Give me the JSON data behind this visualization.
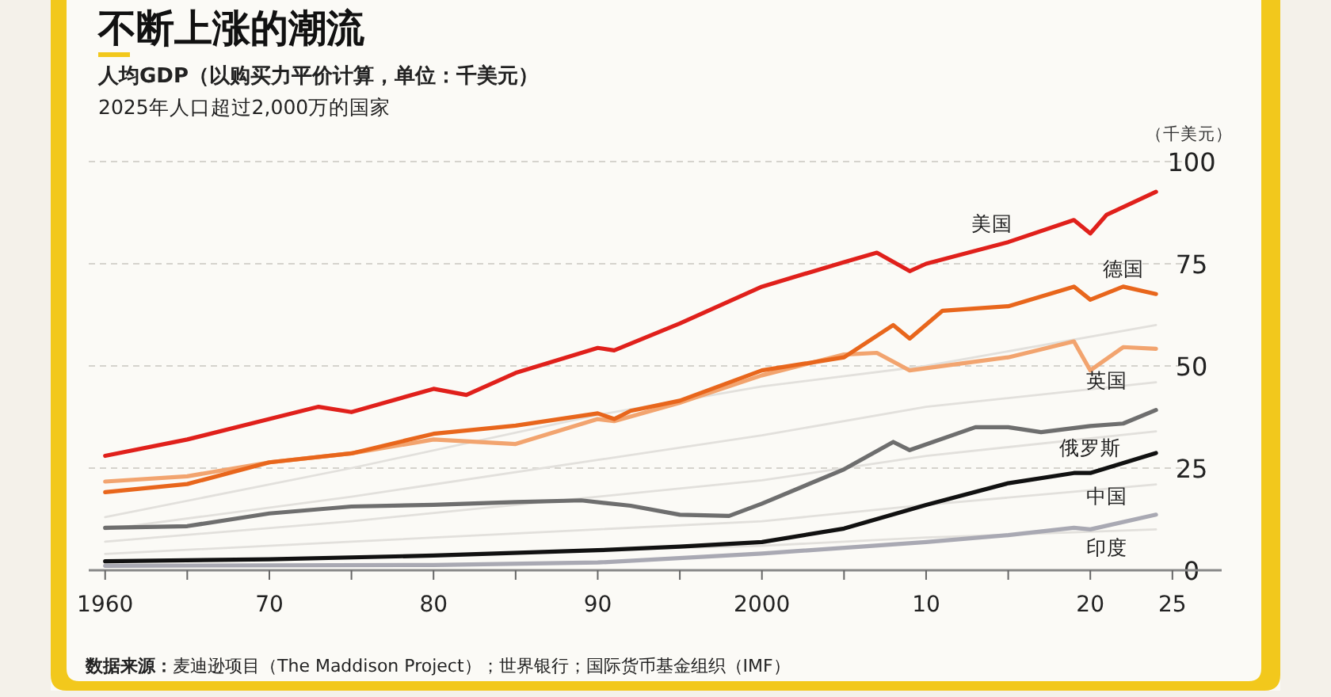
{
  "chart_data": {
    "type": "line",
    "title": "不断上涨的潮流",
    "subtitle": "人均GDP（以购买力平价计算，单位：千美元）",
    "ylabel": "（千美元）",
    "annotations": [
      "2025年人口超过2,000万的国家",
      "**数据来源：**麦迪逊项目（The Maddison Project）；世界银行；国际货币基金组织（IMF）"
    ],
    "xlim": [
      1959,
      2028
    ],
    "ylim": [
      0,
      100
    ],
    "xticks": [
      {
        "value": 1960,
        "label": "1960"
      },
      {
        "value": 1965,
        "label": null
      },
      {
        "value": 1970,
        "label": "70"
      },
      {
        "value": 1975,
        "label": null
      },
      {
        "value": 1980,
        "label": "80"
      },
      {
        "value": 1985,
        "label": null
      },
      {
        "value": 1990,
        "label": "90"
      },
      {
        "value": 1995,
        "label": null
      },
      {
        "value": 2000,
        "label": "2000"
      },
      {
        "value": 2005,
        "label": null
      },
      {
        "value": 2010,
        "label": "10"
      },
      {
        "value": 2015,
        "label": null
      },
      {
        "value": 2020,
        "label": "20"
      },
      {
        "value": 2025,
        "label": "25"
      }
    ],
    "yticks": [
      0,
      25,
      50,
      75,
      100
    ],
    "grid": "y",
    "legend": false,
    "marker": "none",
    "line_style": "solid",
    "series": [
      {
        "color": "#e2e0dc",
        "x": [
          1960,
          1975,
          1990,
          2000,
          2010,
          2024
        ],
        "values": [
          13,
          25,
          38,
          45,
          50,
          60
        ]
      },
      {
        "color": "#e2e0dc",
        "x": [
          1960,
          1975,
          1990,
          2000,
          2010,
          2024
        ],
        "values": [
          10,
          18,
          27,
          33,
          40,
          46
        ]
      },
      {
        "color": "#e2e0dc",
        "x": [
          1960,
          1975,
          1990,
          2000,
          2010,
          2024
        ],
        "values": [
          7,
          12,
          18,
          22,
          28,
          34
        ]
      },
      {
        "color": "#e2e0dc",
        "x": [
          1960,
          1975,
          1990,
          2000,
          2010,
          2024
        ],
        "values": [
          4,
          7,
          10,
          12,
          16,
          21
        ]
      },
      {
        "color": "#e2e0dc",
        "x": [
          1975,
          1990,
          2000,
          2010,
          2024
        ],
        "values": [
          3,
          5,
          6,
          8,
          10
        ]
      },
      {
        "name": "印度",
        "color": "#a9a9b3",
        "x": [
          1960,
          1980,
          1990,
          2000,
          2010,
          2015,
          2019,
          2020,
          2024
        ],
        "values": [
          1.1,
          1.3,
          1.9,
          4.1,
          6.9,
          8.6,
          10.4,
          10,
          13.6
        ]
      },
      {
        "name": "中国",
        "color": "#111111",
        "x": [
          1960,
          1970,
          1980,
          1990,
          1995,
          2000,
          2005,
          2010,
          2015,
          2019,
          2020,
          2024
        ],
        "values": [
          2.2,
          2.7,
          3.6,
          4.9,
          5.8,
          6.9,
          10.2,
          16,
          21.3,
          23.8,
          23.8,
          28.7
        ]
      },
      {
        "name": "俄罗斯",
        "color": "#6e6e6e",
        "x": [
          1960,
          1965,
          1970,
          1975,
          1980,
          1985,
          1989,
          1992,
          1995,
          1998,
          2000,
          2005,
          2008,
          2009,
          2013,
          2015,
          2017,
          2020,
          2022,
          2024
        ],
        "values": [
          10.4,
          10.8,
          13.9,
          15.6,
          16,
          16.7,
          17.1,
          15.8,
          13.6,
          13.3,
          16.3,
          24.7,
          31.4,
          29.4,
          35,
          35,
          33.8,
          35.3,
          35.9,
          39.2
        ]
      },
      {
        "name": "英国",
        "color": "#f2a46f",
        "x": [
          1960,
          1965,
          1970,
          1975,
          1980,
          1985,
          1990,
          1991,
          1995,
          2000,
          2005,
          2007,
          2009,
          2015,
          2019,
          2020,
          2022,
          2024
        ],
        "values": [
          21.7,
          23,
          26.4,
          28.6,
          32,
          30.9,
          37,
          36.5,
          41,
          47.7,
          52.8,
          53.2,
          48.9,
          52.1,
          56,
          48.9,
          54.6,
          54.2
        ]
      },
      {
        "name": "德国",
        "color": "#e8661c",
        "x": [
          1960,
          1965,
          1970,
          1975,
          1980,
          1985,
          1990,
          1991,
          1992,
          1995,
          2000,
          2005,
          2008,
          2009,
          2011,
          2015,
          2019,
          2020,
          2022,
          2024
        ],
        "values": [
          19.1,
          21.1,
          26.4,
          28.6,
          33.4,
          35.4,
          38.4,
          37,
          39,
          41.5,
          48.9,
          52.1,
          60,
          56.7,
          63.5,
          64.6,
          69.4,
          66.2,
          69.4,
          67.6
        ]
      },
      {
        "name": "美国",
        "color": "#e0201b",
        "x": [
          1960,
          1965,
          1970,
          1973,
          1975,
          1980,
          1982,
          1985,
          1990,
          1991,
          1995,
          2000,
          2005,
          2007,
          2009,
          2010,
          2015,
          2019,
          2020,
          2021,
          2024
        ],
        "values": [
          28,
          32,
          37,
          40,
          38.7,
          44.4,
          42.9,
          48.3,
          54.4,
          53.8,
          60.4,
          69.4,
          75.4,
          77.7,
          73.2,
          75,
          80.3,
          85.7,
          82.4,
          87,
          92.6
        ]
      }
    ]
  }
}
